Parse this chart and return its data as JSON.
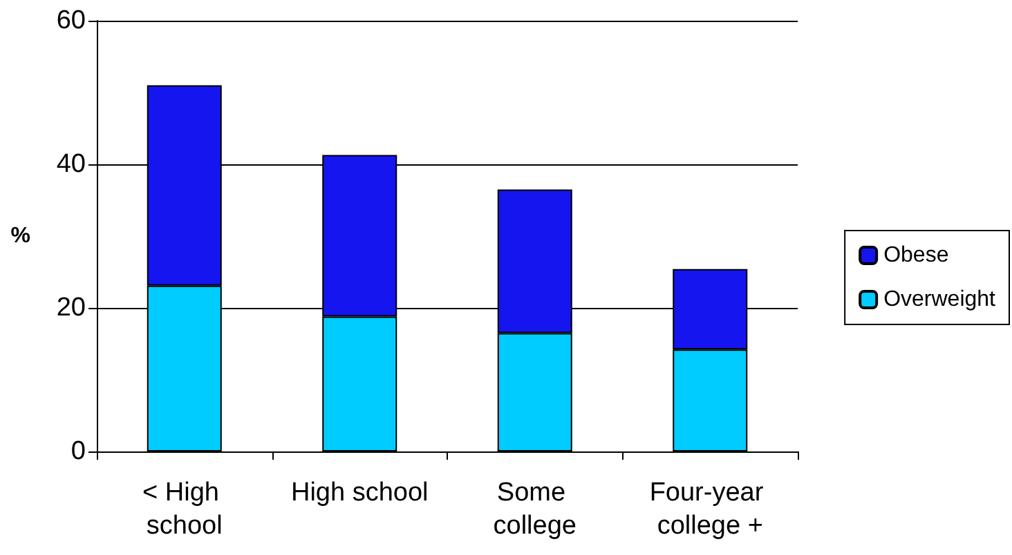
{
  "chart_data": {
    "type": "bar",
    "stacked": true,
    "ylabel": "%",
    "categories": [
      "< High school",
      "High school",
      "Some college",
      "Four-year college +"
    ],
    "series": [
      {
        "name": "Overweight",
        "color": "#00ccff",
        "values": [
          23.1,
          18.8,
          16.5,
          14.2
        ]
      },
      {
        "name": "Obese",
        "color": "#1515f0",
        "values": [
          27.9,
          22.5,
          20,
          11.2
        ]
      }
    ],
    "ylim": [
      0,
      60
    ],
    "yticks": [
      0,
      20,
      40,
      60
    ],
    "grid": "y",
    "legend": "right"
  }
}
